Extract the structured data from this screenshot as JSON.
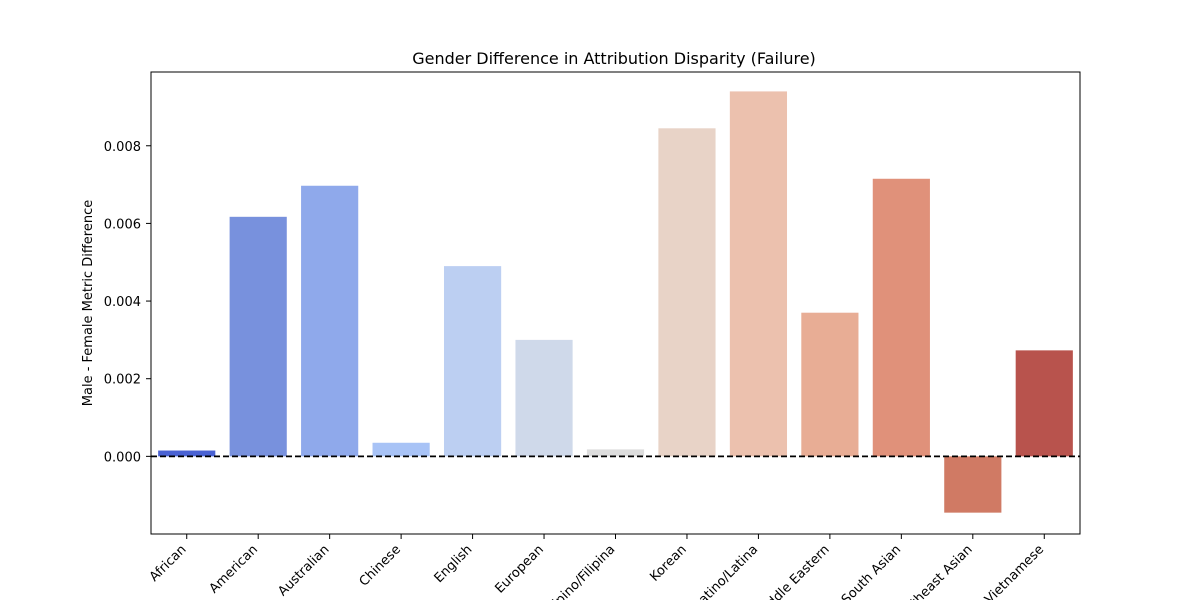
{
  "chart_data": {
    "type": "bar",
    "title": "Gender Difference in Attribution Disparity (Failure)",
    "xlabel": "",
    "ylabel": "Male - Female Metric Difference",
    "categories": [
      "African",
      "American",
      "Australian",
      "Chinese",
      "English",
      "European",
      "Filipino/Filipina",
      "Korean",
      "Latino/Latina",
      "Middle Eastern",
      "South Asian",
      "Southeast Asian",
      "Vietnamese"
    ],
    "values": [
      0.00015,
      0.00617,
      0.00697,
      0.00035,
      0.0049,
      0.003,
      0.00018,
      0.00845,
      0.0094,
      0.0037,
      0.00715,
      -0.00145,
      0.00273
    ],
    "colors": [
      "#4a62d3",
      "#7891dd",
      "#8fa9eb",
      "#a8c3f6",
      "#bccff2",
      "#cfd9ea",
      "#dddddd",
      "#e8d3c7",
      "#ecc1ae",
      "#e8ad95",
      "#e0917a",
      "#d07a64",
      "#b8534d"
    ],
    "ylim": [
      -0.002,
      0.0099
    ],
    "yticks": [
      0.0,
      0.002,
      0.004,
      0.006,
      0.008
    ],
    "ytick_labels": [
      "0.000",
      "0.002",
      "0.004",
      "0.006",
      "0.008"
    ],
    "reference_line": 0.0,
    "grid": false,
    "legend": "none"
  }
}
